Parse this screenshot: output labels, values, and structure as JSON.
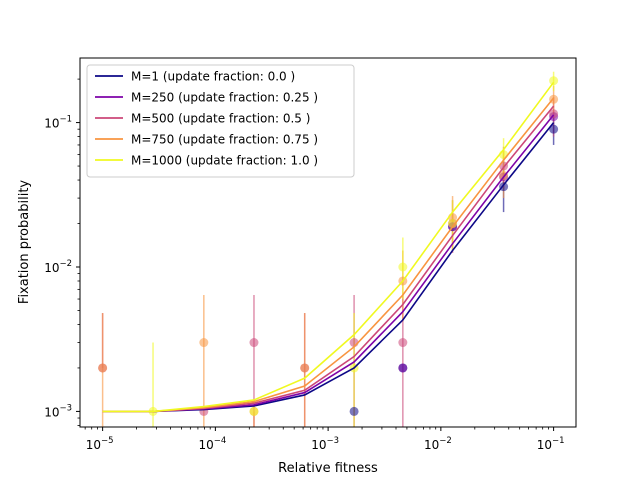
{
  "chart_data": {
    "type": "line",
    "title": "",
    "xlabel": "Relative fitness",
    "ylabel": "Fixation probability",
    "xscale": "log",
    "yscale": "log",
    "xlim": [
      6.3e-06,
      0.158
    ],
    "ylim": [
      0.00078,
      0.28
    ],
    "x_ticks": [
      {
        "value": 1e-05,
        "base": "10",
        "exp": "−5"
      },
      {
        "value": 0.0001,
        "base": "10",
        "exp": "−4"
      },
      {
        "value": 0.001,
        "base": "10",
        "exp": "−3"
      },
      {
        "value": 0.01,
        "base": "10",
        "exp": "−2"
      },
      {
        "value": 0.1,
        "base": "10",
        "exp": "−1"
      }
    ],
    "y_ticks": [
      {
        "value": 0.001,
        "base": "10",
        "exp": "−3"
      },
      {
        "value": 0.01,
        "base": "10",
        "exp": "−2"
      },
      {
        "value": 0.1,
        "base": "10",
        "exp": "−1"
      }
    ],
    "grid": false,
    "legend_position": "top-left",
    "x": [
      1e-05,
      2.8e-05,
      7.9e-05,
      0.00022,
      0.00062,
      0.0017,
      0.0046,
      0.0127,
      0.036,
      0.1
    ],
    "series": [
      {
        "name": "M=1 (update fraction: 0.0 )",
        "color": "#0d0887",
        "line": [
          0.001,
          0.001,
          0.00103,
          0.00109,
          0.0013,
          0.002,
          0.0043,
          0.013,
          0.037,
          0.1
        ],
        "points": [
          null,
          null,
          null,
          null,
          null,
          0.001,
          0.002,
          0.019,
          0.036,
          0.09
        ],
        "err_low": [
          null,
          null,
          null,
          null,
          null,
          null,
          null,
          null,
          0.024,
          0.07
        ],
        "err_high": [
          null,
          null,
          null,
          null,
          null,
          null,
          null,
          null,
          0.05,
          0.11
        ]
      },
      {
        "name": "M=250 (update fraction: 0.25 )",
        "color": "#7e03a8",
        "line": [
          0.001,
          0.001,
          0.00104,
          0.00111,
          0.00135,
          0.0022,
          0.0049,
          0.0145,
          0.042,
          0.113
        ],
        "points": [
          null,
          null,
          null,
          null,
          null,
          null,
          0.002,
          0.019,
          0.042,
          0.11
        ],
        "err_low": [
          null,
          null,
          null,
          null,
          null,
          null,
          null,
          null,
          null,
          null
        ],
        "err_high": [
          null,
          null,
          null,
          null,
          null,
          null,
          null,
          null,
          null,
          null
        ]
      },
      {
        "name": "M=500 (update fraction: 0.5 )",
        "color": "#cc4778",
        "line": [
          0.001,
          0.001,
          0.00105,
          0.00114,
          0.0014,
          0.0024,
          0.0055,
          0.0165,
          0.049,
          0.13
        ],
        "points": [
          0.002,
          null,
          0.001,
          0.003,
          0.002,
          0.003,
          0.003,
          0.02,
          0.05,
          0.115
        ],
        "err_low": [
          null,
          null,
          null,
          0.00078,
          0.00078,
          0.00078,
          0.00078,
          0.0125,
          0.035,
          0.08
        ],
        "err_high": [
          0.0048,
          null,
          null,
          0.0064,
          0.0048,
          0.0064,
          0.0064,
          0.029,
          0.068,
          0.15
        ]
      },
      {
        "name": "M=750 (update fraction: 0.75 )",
        "color": "#f89540",
        "line": [
          0.001,
          0.001,
          0.00106,
          0.00117,
          0.0015,
          0.0028,
          0.0064,
          0.019,
          0.055,
          0.148
        ],
        "points": [
          0.002,
          null,
          0.003,
          0.001,
          0.002,
          null,
          0.008,
          0.022,
          0.043,
          0.145
        ],
        "err_low": [
          0.00078,
          null,
          0.00078,
          0.00078,
          0.00078,
          null,
          0.0042,
          0.014,
          0.03,
          0.115
        ],
        "err_high": [
          0.0048,
          null,
          0.0064,
          null,
          0.0048,
          null,
          0.013,
          0.031,
          0.065,
          0.18
        ]
      },
      {
        "name": "M=1000 (update fraction: 1.0 )",
        "color": "#f0f921",
        "line": [
          0.001,
          0.001,
          0.00108,
          0.0012,
          0.0017,
          0.0034,
          0.008,
          0.024,
          0.065,
          0.19
        ],
        "points": [
          null,
          0.001,
          null,
          0.001,
          null,
          0.002,
          0.01,
          0.02,
          0.06,
          0.195
        ],
        "err_low": [
          null,
          0.00078,
          null,
          null,
          null,
          0.00078,
          0.006,
          0.013,
          0.042,
          0.165
        ],
        "err_high": [
          null,
          0.003,
          null,
          null,
          null,
          0.0048,
          0.016,
          0.029,
          0.078,
          0.225
        ]
      }
    ]
  }
}
